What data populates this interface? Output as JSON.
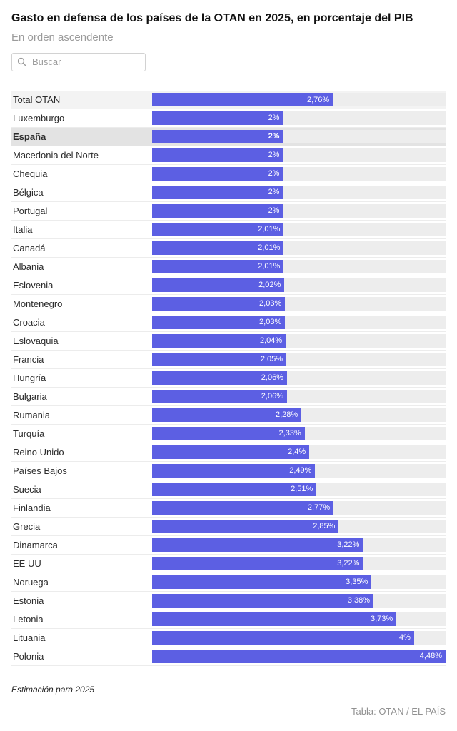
{
  "header": {
    "title": "Gasto en defensa de los países de la OTAN en 2025, en porcentaje del PIB",
    "subtitle": "En orden ascendente"
  },
  "search": {
    "placeholder": "Buscar"
  },
  "chart_data": {
    "type": "bar",
    "orientation": "horizontal",
    "title": "Gasto en defensa de los países de la OTAN en 2025, en porcentaje del PIB",
    "subtitle": "En orden ascendente",
    "xlabel": "",
    "ylabel": "",
    "xlim": [
      0,
      4.48
    ],
    "value_suffix": "%",
    "grid": false,
    "legend": false,
    "bar_color": "#5c5fe3",
    "track_color": "#ededed",
    "total_row_index": 0,
    "highlight_row_index": 2,
    "categories": [
      "Total OTAN",
      "Luxemburgo",
      "España",
      "Macedonia del Norte",
      "Chequia",
      "Bélgica",
      "Portugal",
      "Italia",
      "Canadá",
      "Albania",
      "Eslovenia",
      "Montenegro",
      "Croacia",
      "Eslovaquia",
      "Francia",
      "Hungría",
      "Bulgaria",
      "Rumania",
      "Turquía",
      "Reino Unido",
      "Países Bajos",
      "Suecia",
      "Finlandia",
      "Grecia",
      "Dinamarca",
      "EE UU",
      "Noruega",
      "Estonia",
      "Letonia",
      "Lituania",
      "Polonia"
    ],
    "values": [
      2.76,
      2,
      2,
      2,
      2,
      2,
      2,
      2.01,
      2.01,
      2.01,
      2.02,
      2.03,
      2.03,
      2.04,
      2.05,
      2.06,
      2.06,
      2.28,
      2.33,
      2.4,
      2.49,
      2.51,
      2.77,
      2.85,
      3.22,
      3.22,
      3.35,
      3.38,
      3.73,
      4,
      4.48
    ],
    "value_labels": [
      "2,76%",
      "2%",
      "2%",
      "2%",
      "2%",
      "2%",
      "2%",
      "2,01%",
      "2,01%",
      "2,01%",
      "2,02%",
      "2,03%",
      "2,03%",
      "2,04%",
      "2,05%",
      "2,06%",
      "2,06%",
      "2,28%",
      "2,33%",
      "2,4%",
      "2,49%",
      "2,51%",
      "2,77%",
      "2,85%",
      "3,22%",
      "3,22%",
      "3,35%",
      "3,38%",
      "3,73%",
      "4%",
      "4,48%"
    ]
  },
  "footer": {
    "note": "Estimación para 2025",
    "attribution": "Tabla: OTAN / EL PAÍS"
  }
}
